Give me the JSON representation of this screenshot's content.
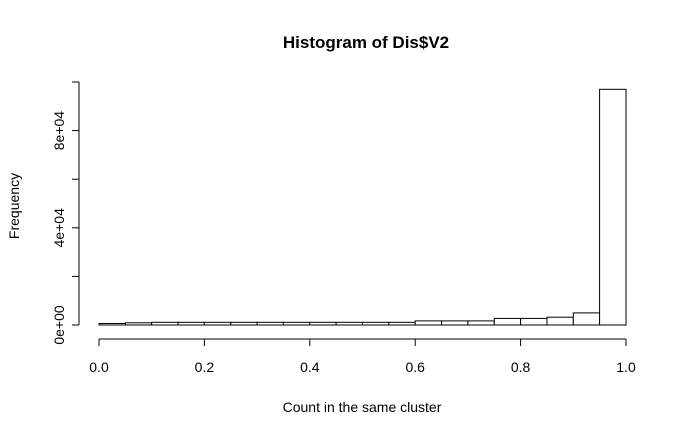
{
  "chart_data": {
    "type": "bar",
    "title": "Histogram of Dis$V2",
    "xlabel": "Count in the same cluster",
    "ylabel": "Frequency",
    "xlim": [
      0,
      1
    ],
    "ylim": [
      0,
      100000
    ],
    "grid": false,
    "bins": [
      {
        "x0": 0.0,
        "x1": 0.05,
        "count": 600
      },
      {
        "x0": 0.05,
        "x1": 0.1,
        "count": 900
      },
      {
        "x0": 0.1,
        "x1": 0.15,
        "count": 1100
      },
      {
        "x0": 0.15,
        "x1": 0.2,
        "count": 1100
      },
      {
        "x0": 0.2,
        "x1": 0.25,
        "count": 1100
      },
      {
        "x0": 0.25,
        "x1": 0.3,
        "count": 1100
      },
      {
        "x0": 0.3,
        "x1": 0.35,
        "count": 1100
      },
      {
        "x0": 0.35,
        "x1": 0.4,
        "count": 1100
      },
      {
        "x0": 0.4,
        "x1": 0.45,
        "count": 1100
      },
      {
        "x0": 0.45,
        "x1": 0.5,
        "count": 1100
      },
      {
        "x0": 0.5,
        "x1": 0.55,
        "count": 1100
      },
      {
        "x0": 0.55,
        "x1": 0.6,
        "count": 1100
      },
      {
        "x0": 0.6,
        "x1": 0.65,
        "count": 1700
      },
      {
        "x0": 0.65,
        "x1": 0.7,
        "count": 1700
      },
      {
        "x0": 0.7,
        "x1": 0.75,
        "count": 1700
      },
      {
        "x0": 0.75,
        "x1": 0.8,
        "count": 2700
      },
      {
        "x0": 0.8,
        "x1": 0.85,
        "count": 2700
      },
      {
        "x0": 0.85,
        "x1": 0.9,
        "count": 3200
      },
      {
        "x0": 0.9,
        "x1": 0.95,
        "count": 5000
      },
      {
        "x0": 0.95,
        "x1": 1.0,
        "count": 97000
      }
    ],
    "x_ticks": [
      {
        "value": 0.0,
        "label": "0.0"
      },
      {
        "value": 0.2,
        "label": "0.2"
      },
      {
        "value": 0.4,
        "label": "0.4"
      },
      {
        "value": 0.6,
        "label": "0.6"
      },
      {
        "value": 0.8,
        "label": "0.8"
      },
      {
        "value": 1.0,
        "label": "1.0"
      }
    ],
    "y_ticks": [
      {
        "value": 0,
        "label": "0e+00"
      },
      {
        "value": 20000,
        "label": ""
      },
      {
        "value": 40000,
        "label": "4e+04"
      },
      {
        "value": 60000,
        "label": ""
      },
      {
        "value": 80000,
        "label": "8e+04"
      },
      {
        "value": 100000,
        "label": ""
      }
    ]
  }
}
